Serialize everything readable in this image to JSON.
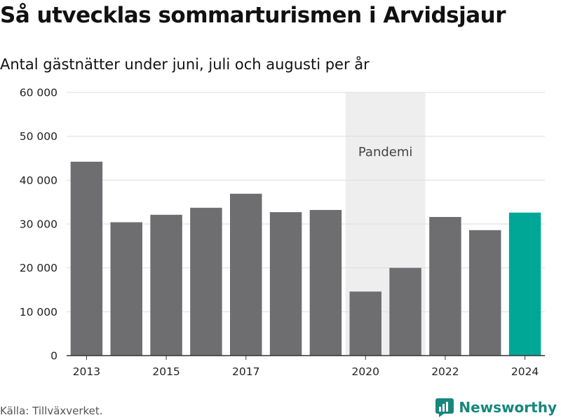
{
  "title": "Så utvecklas sommarturismen i Arvidsjaur",
  "subtitle": "Antal gästnätter under juni, juli och augusti per år",
  "source": "Källa: Tillväxverket.",
  "brand": "Newsworthy",
  "colors": {
    "bar": "#6e6e71",
    "highlight": "#00a797",
    "band": "#eeeeee",
    "grid": "#dddddd",
    "brand": "#16877d"
  },
  "chart_data": {
    "type": "bar",
    "categories": [
      "2013",
      "2014",
      "2015",
      "2016",
      "2017",
      "2018",
      "2019",
      "2020",
      "2021",
      "2022",
      "2023",
      "2024"
    ],
    "values": [
      44200,
      30400,
      32100,
      33700,
      36900,
      32700,
      33200,
      14600,
      20000,
      31600,
      28600,
      32600
    ],
    "x_tick_labels": [
      "2013",
      "2015",
      "2017",
      "2020",
      "2022",
      "2024"
    ],
    "y_ticks": [
      0,
      10000,
      20000,
      30000,
      40000,
      50000,
      60000
    ],
    "y_tick_labels": [
      "0",
      "10 000",
      "20 000",
      "30 000",
      "40 000",
      "50 000",
      "60 000"
    ],
    "ylim": [
      0,
      60000
    ],
    "highlight_category": "2024",
    "annotation": {
      "label": "Pandemi",
      "from": "2020",
      "to": "2021"
    },
    "grid": true
  }
}
